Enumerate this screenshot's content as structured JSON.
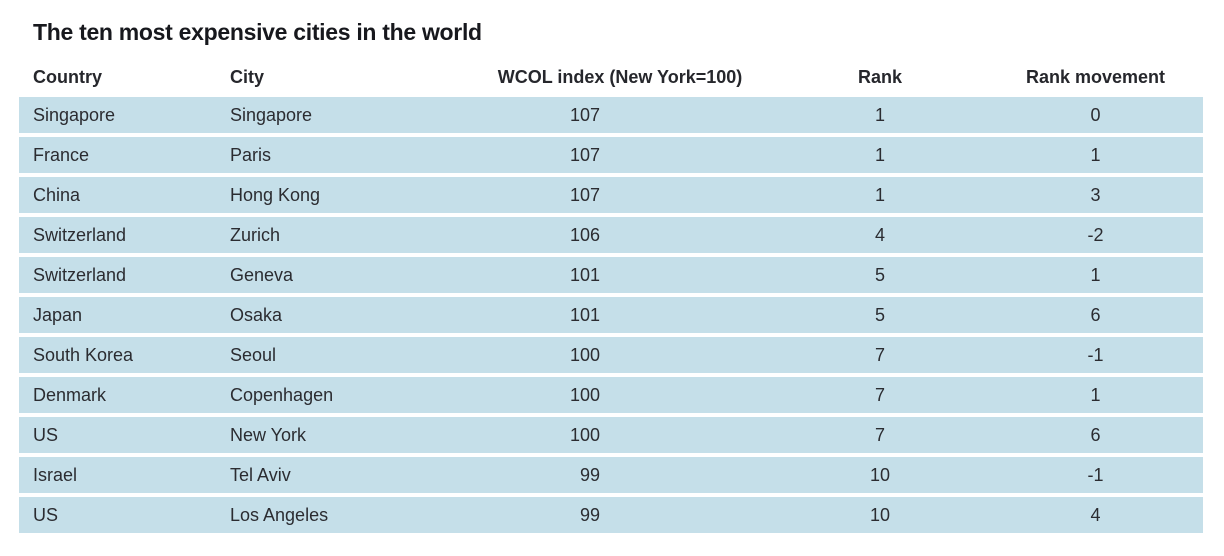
{
  "chart_data": {
    "type": "table",
    "title": "The ten most expensive cities in the world",
    "columns": [
      "Country",
      "City",
      "WCOL index (New York=100)",
      "Rank",
      "Rank movement"
    ],
    "rows": [
      [
        "Singapore",
        "Singapore",
        "107",
        "1",
        "0"
      ],
      [
        "France",
        "Paris",
        "107",
        "1",
        "1"
      ],
      [
        "China",
        "Hong Kong",
        "107",
        "1",
        "3"
      ],
      [
        "Switzerland",
        "Zurich",
        "106",
        "4",
        "-2"
      ],
      [
        "Switzerland",
        "Geneva",
        "101",
        "5",
        "1"
      ],
      [
        "Japan",
        "Osaka",
        "101",
        "5",
        "6"
      ],
      [
        "South Korea",
        "Seoul",
        "100",
        "7",
        "-1"
      ],
      [
        "Denmark",
        "Copenhagen",
        "100",
        "7",
        "1"
      ],
      [
        "US",
        "New York",
        "100",
        "7",
        "6"
      ],
      [
        "Israel",
        "Tel Aviv",
        "99",
        "10",
        "-1"
      ],
      [
        "US",
        "Los Angeles",
        "99",
        "10",
        "4"
      ]
    ],
    "layout": {
      "row_striping": "all rows light blue with white gaps",
      "value_alignment": {
        "wcol_index": "right",
        "rank": "center",
        "rank_movement": "center"
      }
    }
  },
  "colors": {
    "row_stripe": "#c5dfe9",
    "text": "#2b2c31",
    "title_text": "#17181d",
    "header_text": "#26272c",
    "background": "#ffffff"
  }
}
